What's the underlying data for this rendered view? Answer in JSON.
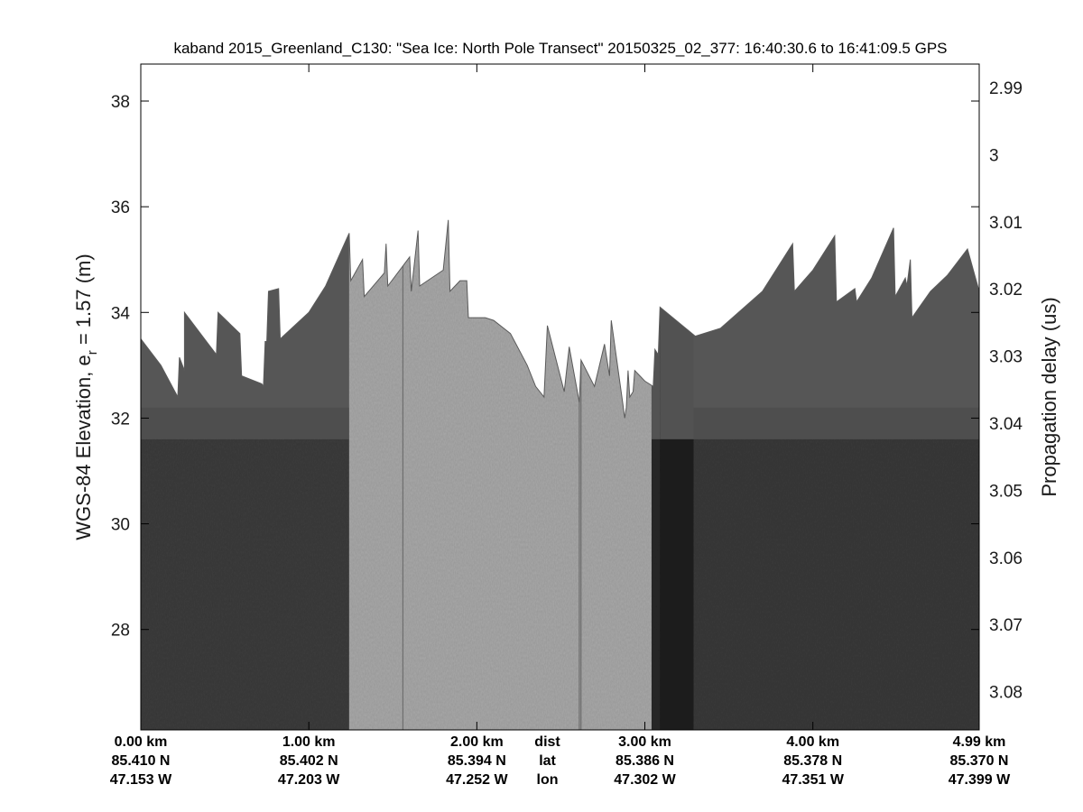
{
  "chart_data": {
    "type": "heatmap",
    "title": "kaband 2015_Greenland_C130: \"Sea Ice: North Pole Transect\"  20150325_02_377: 16:40:30.6 to 16:41:09.5 GPS",
    "ylabel_left_main": "WGS-84 Elevation, e",
    "ylabel_left_sub": "r",
    "ylabel_left_tail": " = 1.57 (m)",
    "ylabel_right": "Propagation delay (us)",
    "ylim_left": [
      26.1,
      38.7
    ],
    "yticks_left": [
      "28",
      "30",
      "32",
      "34",
      "36",
      "38"
    ],
    "yticks_left_values": [
      28,
      30,
      32,
      34,
      36,
      38
    ],
    "ylim_right": [
      2.9865,
      3.0857
    ],
    "yticks_right": [
      "2.99",
      "3",
      "3.01",
      "3.02",
      "3.03",
      "3.04",
      "3.05",
      "3.06",
      "3.07",
      "3.08"
    ],
    "yticks_right_values": [
      2.99,
      3.0,
      3.01,
      3.02,
      3.03,
      3.04,
      3.05,
      3.06,
      3.07,
      3.08
    ],
    "xlim_km": [
      0,
      4.99
    ],
    "x_ticks": [
      {
        "dist_km": 0.0,
        "dist": "0.00 km",
        "lat": "85.410 N",
        "lon": "47.153 W"
      },
      {
        "dist_km": 1.0,
        "dist": "1.00 km",
        "lat": "85.402 N",
        "lon": "47.203 W"
      },
      {
        "dist_km": 2.0,
        "dist": "2.00 km",
        "lat": "85.394 N",
        "lon": "47.252 W"
      },
      {
        "dist_km": 3.0,
        "dist": "3.00 km",
        "lat": "85.386 N",
        "lon": "47.302 W"
      },
      {
        "dist_km": 4.0,
        "dist": "4.00 km",
        "lat": "85.378 N",
        "lon": "47.351 W"
      },
      {
        "dist_km": 4.99,
        "dist": "4.99 km",
        "lat": "85.370 N",
        "lon": "47.399 W"
      }
    ],
    "row_labels": {
      "dist": "dist",
      "lat": "lat",
      "lon": "lon"
    },
    "row_labels_km": 2.42,
    "colormap": "gray",
    "grid": false,
    "surface_elevation_profile": [
      [
        0.0,
        33.5
      ],
      [
        0.12,
        33.0
      ],
      [
        0.22,
        32.4
      ],
      [
        0.23,
        33.15
      ],
      [
        0.26,
        32.9
      ],
      [
        0.26,
        34.0
      ],
      [
        0.45,
        33.2
      ],
      [
        0.46,
        34.0
      ],
      [
        0.59,
        33.6
      ],
      [
        0.6,
        32.8
      ],
      [
        0.72,
        32.65
      ],
      [
        0.73,
        32.6
      ],
      [
        0.74,
        33.45
      ],
      [
        0.75,
        33.45
      ],
      [
        0.76,
        34.4
      ],
      [
        0.82,
        34.45
      ],
      [
        0.83,
        33.5
      ],
      [
        1.0,
        34.0
      ],
      [
        1.1,
        34.5
      ],
      [
        1.24,
        35.5
      ],
      [
        1.25,
        34.6
      ],
      [
        1.32,
        35.0
      ],
      [
        1.33,
        34.3
      ],
      [
        1.45,
        34.75
      ],
      [
        1.46,
        35.3
      ],
      [
        1.47,
        34.5
      ],
      [
        1.6,
        35.05
      ],
      [
        1.61,
        34.4
      ],
      [
        1.65,
        35.55
      ],
      [
        1.66,
        34.5
      ],
      [
        1.8,
        34.8
      ],
      [
        1.83,
        35.75
      ],
      [
        1.84,
        34.4
      ],
      [
        1.9,
        34.6
      ],
      [
        1.94,
        34.6
      ],
      [
        1.95,
        33.9
      ],
      [
        2.05,
        33.9
      ],
      [
        2.1,
        33.85
      ],
      [
        2.2,
        33.6
      ],
      [
        2.3,
        33.0
      ],
      [
        2.35,
        32.6
      ],
      [
        2.4,
        32.4
      ],
      [
        2.42,
        33.75
      ],
      [
        2.52,
        32.5
      ],
      [
        2.55,
        33.35
      ],
      [
        2.61,
        32.3
      ],
      [
        2.62,
        33.1
      ],
      [
        2.7,
        32.6
      ],
      [
        2.76,
        33.4
      ],
      [
        2.79,
        32.8
      ],
      [
        2.8,
        33.85
      ],
      [
        2.87,
        32.25
      ],
      [
        2.88,
        32.0
      ],
      [
        2.89,
        32.2
      ],
      [
        2.9,
        32.9
      ],
      [
        2.91,
        32.4
      ],
      [
        2.93,
        32.5
      ],
      [
        2.94,
        32.9
      ],
      [
        3.0,
        32.7
      ],
      [
        3.05,
        32.6
      ],
      [
        3.06,
        33.3
      ],
      [
        3.08,
        33.2
      ],
      [
        3.09,
        34.1
      ],
      [
        3.3,
        33.55
      ],
      [
        3.45,
        33.7
      ],
      [
        3.7,
        34.4
      ],
      [
        3.88,
        35.3
      ],
      [
        3.89,
        34.4
      ],
      [
        4.0,
        34.8
      ],
      [
        4.13,
        35.45
      ],
      [
        4.14,
        34.2
      ],
      [
        4.25,
        34.45
      ],
      [
        4.26,
        34.2
      ],
      [
        4.35,
        34.65
      ],
      [
        4.48,
        35.6
      ],
      [
        4.49,
        34.3
      ],
      [
        4.55,
        34.65
      ],
      [
        4.56,
        34.5
      ],
      [
        4.58,
        35.0
      ],
      [
        4.59,
        33.9
      ],
      [
        4.7,
        34.4
      ],
      [
        4.8,
        34.7
      ],
      [
        4.92,
        35.2
      ],
      [
        4.99,
        34.4
      ]
    ],
    "data_bands": [
      {
        "x0_km": 0.0,
        "x1_km": 1.24,
        "shade": "#3e3e3e",
        "type": "dark"
      },
      {
        "x0_km": 1.24,
        "x1_km": 3.04,
        "shade": "#a9a9a9",
        "type": "light"
      },
      {
        "x0_km": 3.04,
        "x1_km": 3.09,
        "shade": "#2a2a2a",
        "type": "dark"
      },
      {
        "x0_km": 3.09,
        "x1_km": 3.29,
        "shade": "#232323",
        "type": "dark"
      },
      {
        "x0_km": 3.29,
        "x1_km": 4.99,
        "shade": "#3a3a3a",
        "type": "dark"
      }
    ],
    "vertical_streaks_km": [
      1.56,
      2.61,
      2.62
    ],
    "dark_layer_elevation_m": 31.6,
    "surface_layer_elevation_m": 32.2
  }
}
